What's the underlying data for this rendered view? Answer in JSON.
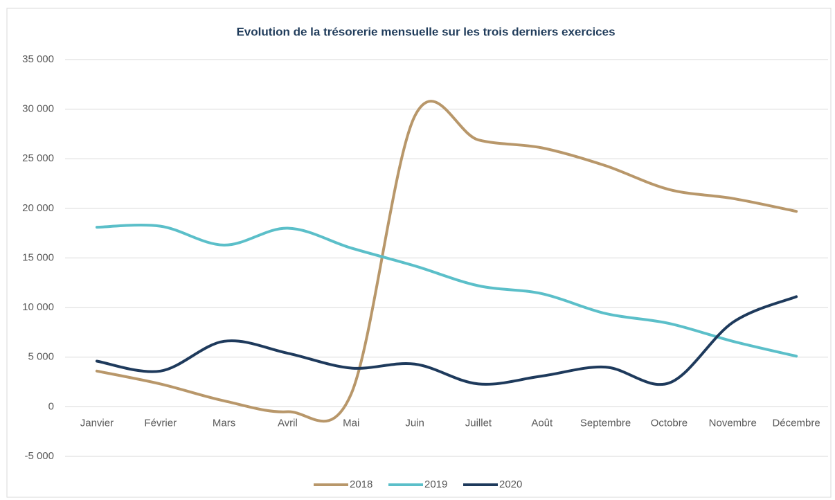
{
  "chart_data": {
    "type": "line",
    "title": "Evolution de la trésorerie mensuelle sur les trois derniers exercices",
    "categories": [
      "Janvier",
      "Février",
      "Mars",
      "Avril",
      "Mai",
      "Juin",
      "Juillet",
      "Août",
      "Septembre",
      "Octobre",
      "Novembre",
      "Décembre"
    ],
    "series": [
      {
        "name": "2018",
        "color": "#b8976a",
        "values": [
          3600,
          2300,
          600,
          -500,
          1300,
          29300,
          26900,
          26100,
          24300,
          21900,
          21000,
          19700
        ]
      },
      {
        "name": "2019",
        "color": "#5bbfc9",
        "values": [
          18100,
          18200,
          16300,
          18000,
          16000,
          14200,
          12200,
          11400,
          9400,
          8400,
          6600,
          5100
        ]
      },
      {
        "name": "2020",
        "color": "#1e3a5c",
        "values": [
          4600,
          3600,
          6600,
          5400,
          3900,
          4300,
          2300,
          3100,
          4000,
          2400,
          8500,
          11100
        ]
      }
    ],
    "ylim": [
      -5000,
      35000
    ],
    "yticks": [
      {
        "value": -5000,
        "label": "-5 000"
      },
      0,
      {
        "value": 5000,
        "label": "5 000"
      },
      {
        "value": 10000,
        "label": "10 000"
      },
      {
        "value": 15000,
        "label": "15 000"
      },
      {
        "value": 20000,
        "label": "20 000"
      },
      {
        "value": 25000,
        "label": "25 000"
      },
      {
        "value": 30000,
        "label": "30 000"
      },
      {
        "value": 35000,
        "label": "35 000"
      }
    ],
    "grid": true,
    "legend": "bottom"
  }
}
